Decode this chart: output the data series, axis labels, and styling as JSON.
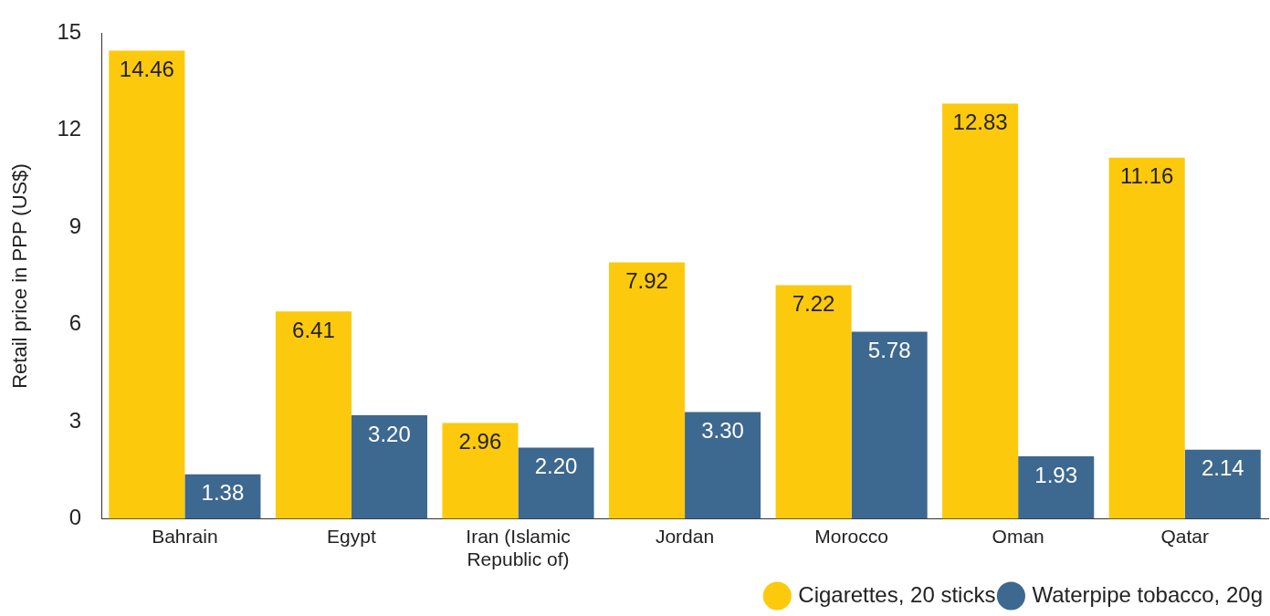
{
  "chart_data": {
    "type": "bar",
    "ylabel": "Retail price in PPP (US$)",
    "categories": [
      "Bahrain",
      "Egypt",
      "Iran (Islamic Republic of)",
      "Jordan",
      "Morocco",
      "Oman",
      "Qatar"
    ],
    "series": [
      {
        "name": "Cigarettes, 20 sticks",
        "color": "#fcc90d",
        "values": [
          14.46,
          6.41,
          2.96,
          7.92,
          7.22,
          12.83,
          11.16
        ],
        "value_labels": [
          "14.46",
          "6.41",
          "2.96",
          "7.92",
          "7.22",
          "12.83",
          "11.16"
        ]
      },
      {
        "name": "Waterpipe tobacco, 20g",
        "color": "#3d6890",
        "values": [
          1.38,
          3.2,
          2.2,
          3.3,
          5.78,
          1.93,
          2.14
        ],
        "value_labels": [
          "1.38",
          "3.20",
          "2.20",
          "3.30",
          "5.78",
          "1.93",
          "2.14"
        ]
      }
    ],
    "ylim": [
      0,
      15
    ],
    "yticks": [
      0,
      3,
      6,
      9,
      12,
      15
    ],
    "grid": false,
    "legend": "bottom right"
  }
}
